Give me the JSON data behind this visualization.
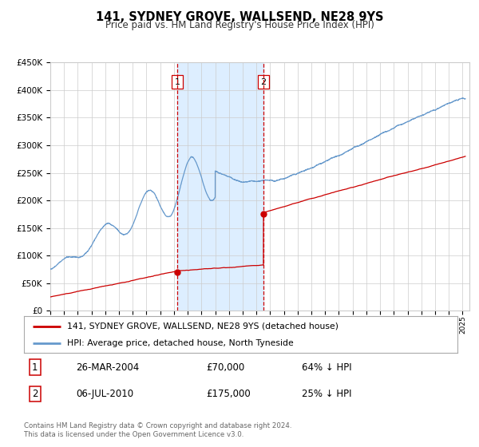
{
  "title": "141, SYDNEY GROVE, WALLSEND, NE28 9YS",
  "subtitle": "Price paid vs. HM Land Registry's House Price Index (HPI)",
  "red_label": "141, SYDNEY GROVE, WALLSEND, NE28 9YS (detached house)",
  "blue_label": "HPI: Average price, detached house, North Tyneside",
  "sale1_date": "26-MAR-2004",
  "sale1_price": "£70,000",
  "sale1_hpi": "64% ↓ HPI",
  "sale2_date": "06-JUL-2010",
  "sale2_price": "£175,000",
  "sale2_hpi": "25% ↓ HPI",
  "footer": "Contains HM Land Registry data © Crown copyright and database right 2024.\nThis data is licensed under the Open Government Licence v3.0.",
  "red_color": "#cc0000",
  "blue_color": "#6699cc",
  "shaded_color": "#ddeeff",
  "vline_color": "#cc0000",
  "grid_color": "#cccccc",
  "bg_color": "#ffffff",
  "ylim": [
    0,
    450000
  ],
  "yticks": [
    0,
    50000,
    100000,
    150000,
    200000,
    250000,
    300000,
    350000,
    400000,
    450000
  ],
  "sale1_year": 2004.23,
  "sale2_year": 2010.51,
  "sale1_red_price": 70000,
  "sale2_red_price": 175000
}
